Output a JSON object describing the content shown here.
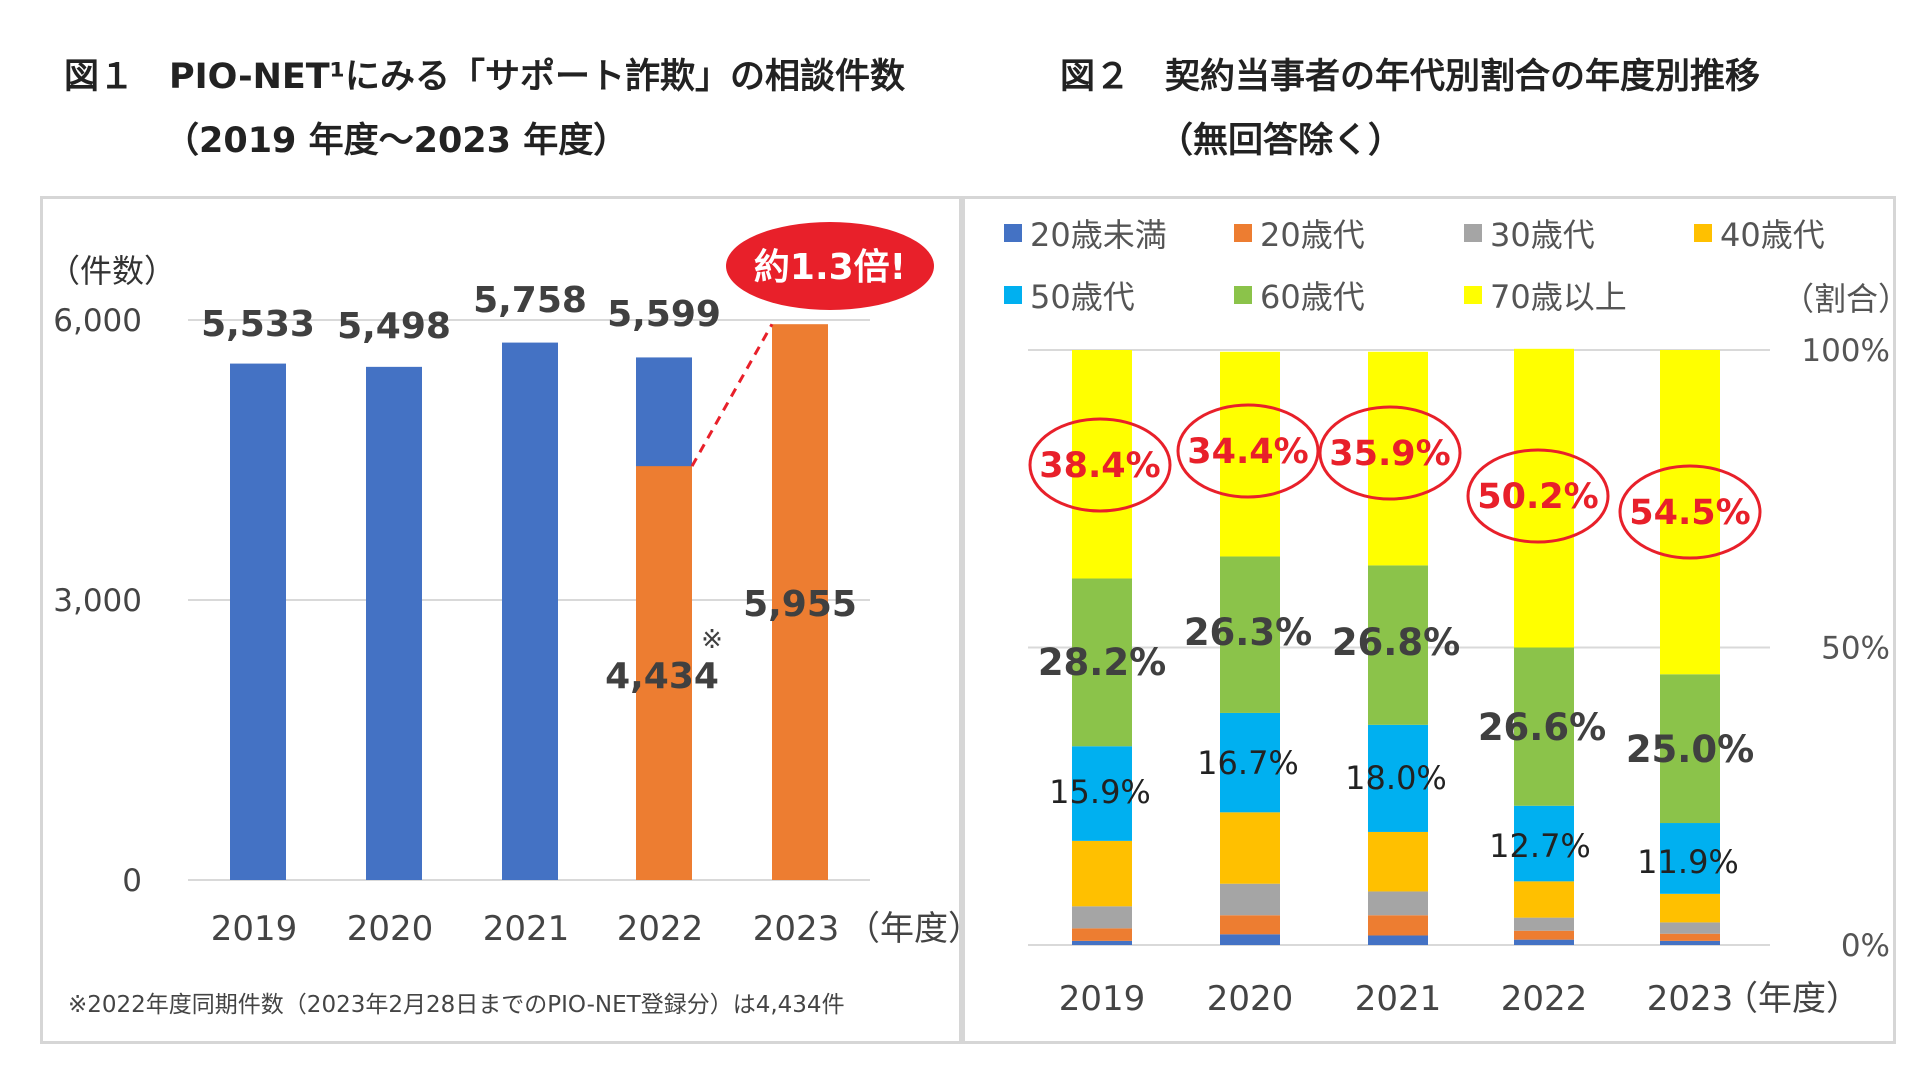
{
  "figure1": {
    "title_line1": "図１　PIO-NET¹にみる「サポート詐欺」の相談件数",
    "title_line2": "（2019 年度～2023 年度）",
    "chart_data": {
      "type": "bar",
      "ylabel": "（件数）",
      "xlabel": "（年度）",
      "ylim": [
        0,
        6000
      ],
      "y_ticks": [
        "0",
        "3,000",
        "6,000"
      ],
      "categories": [
        "2019",
        "2020",
        "2021",
        "2022",
        "2023"
      ],
      "values": [
        5533,
        5498,
        5758,
        5599,
        5955
      ],
      "value_labels": [
        "5,533",
        "5,498",
        "5,758",
        "5,599",
        "5,955"
      ],
      "same_period_value": 4434,
      "same_period_label": "4,434",
      "same_period_mark": "※",
      "callout": "約1.3倍!",
      "footnote": "※2022年度同期件数（2023年2月28日までのPIO-NET登録分）は4,434件",
      "colors": {
        "full_year": "#4472C4",
        "same_period": "#ED7D31",
        "callout": "#E8202A",
        "dashed": "#E8202A"
      }
    }
  },
  "figure2": {
    "title_line1": "図２　契約当事者の年代別割合の年度別推移",
    "title_line2": "（無回答除く）",
    "chart_data": {
      "type": "bar",
      "stacked": true,
      "ylabel": "（割合）",
      "xlabel": "（年度）",
      "ylim": [
        0,
        100
      ],
      "y_ticks": [
        "0%",
        "50%",
        "100%"
      ],
      "categories": [
        "2019",
        "2020",
        "2021",
        "2022",
        "2023"
      ],
      "series": [
        {
          "name": "20歳未満",
          "color": "#4472C4",
          "values": [
            0.7,
            1.8,
            1.6,
            0.9,
            0.7
          ]
        },
        {
          "name": "20歳代",
          "color": "#ED7D31",
          "values": [
            2.1,
            3.2,
            3.4,
            1.5,
            1.2
          ]
        },
        {
          "name": "30歳代",
          "color": "#A5A5A5",
          "values": [
            3.7,
            5.3,
            4.0,
            2.2,
            1.9
          ]
        },
        {
          "name": "40歳代",
          "color": "#FFC000",
          "values": [
            11.0,
            12.0,
            10.0,
            6.1,
            4.8
          ]
        },
        {
          "name": "50歳代",
          "color": "#00B0F0",
          "values": [
            15.9,
            16.7,
            18.0,
            12.7,
            11.9
          ]
        },
        {
          "name": "60歳代",
          "color": "#8BC34A",
          "values": [
            28.2,
            26.3,
            26.8,
            26.6,
            25.0
          ]
        },
        {
          "name": "70歳以上",
          "color": "#FFFF00",
          "values": [
            38.4,
            34.4,
            35.9,
            50.2,
            54.5
          ]
        }
      ],
      "labels_50s": [
        "15.9%",
        "16.7%",
        "18.0%",
        "12.7%",
        "11.9%"
      ],
      "labels_60s": [
        "28.2%",
        "26.3%",
        "26.8%",
        "26.6%",
        "25.0%"
      ],
      "labels_70s": [
        "38.4%",
        "34.4%",
        "35.9%",
        "50.2%",
        "54.5%"
      ],
      "highlight_color": "#E8202A"
    }
  }
}
